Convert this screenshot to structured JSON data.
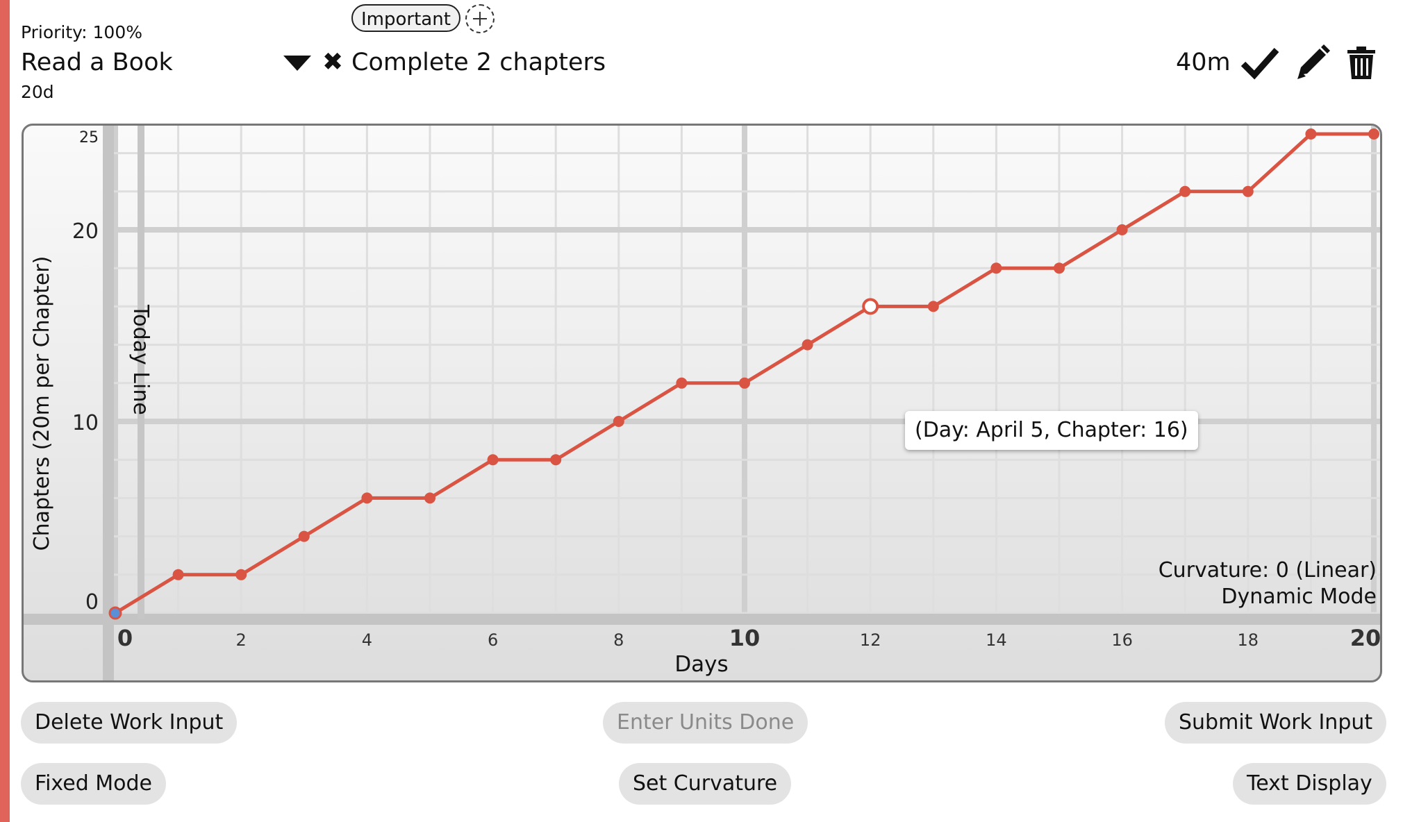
{
  "task": {
    "tag": "Important",
    "priority": "Priority: 100%",
    "name": "Read a Book",
    "due": "20d",
    "goal": "Complete 2 chapters",
    "time_remaining": "40m"
  },
  "icons": {
    "collapse": "triangle-down-icon",
    "cancel": "x-icon",
    "complete": "check-icon",
    "edit": "pencil-icon",
    "delete": "trash-icon",
    "add_tag": "plus-circle-icon"
  },
  "colors": {
    "accent": "#e0645a",
    "line": "#d95443",
    "start_point": "#5a8fd8"
  },
  "chart_data": {
    "type": "line",
    "xlabel": "Days",
    "ylabel": "Chapters (20m per Chapter)",
    "xlim": [
      0,
      20
    ],
    "ylim": [
      0,
      25
    ],
    "x_ticks": [
      0,
      2,
      4,
      6,
      8,
      10,
      12,
      14,
      16,
      18,
      20
    ],
    "y_ticks": [
      0,
      10,
      20,
      25
    ],
    "x": [
      0,
      1,
      2,
      3,
      4,
      5,
      6,
      7,
      8,
      9,
      10,
      11,
      12,
      13,
      14,
      15,
      16,
      17,
      18,
      19,
      20
    ],
    "values": [
      0,
      2,
      2,
      4,
      6,
      6,
      8,
      8,
      10,
      12,
      12,
      14,
      16,
      16,
      18,
      18,
      20,
      22,
      22,
      25,
      25
    ],
    "today_line_label": "Today Line",
    "hover_point": {
      "x": 12,
      "y": 16,
      "label": "(Day: April 5, Chapter: 16)"
    },
    "curvature_text": "Curvature: 0 (Linear)",
    "mode_text": "Dynamic Mode",
    "grid": true
  },
  "controls": {
    "delete_work_input": "Delete Work Input",
    "enter_units_placeholder": "Enter Units Done",
    "submit_work_input": "Submit Work Input",
    "fixed_mode": "Fixed Mode",
    "set_curvature": "Set Curvature",
    "text_display": "Text Display"
  }
}
